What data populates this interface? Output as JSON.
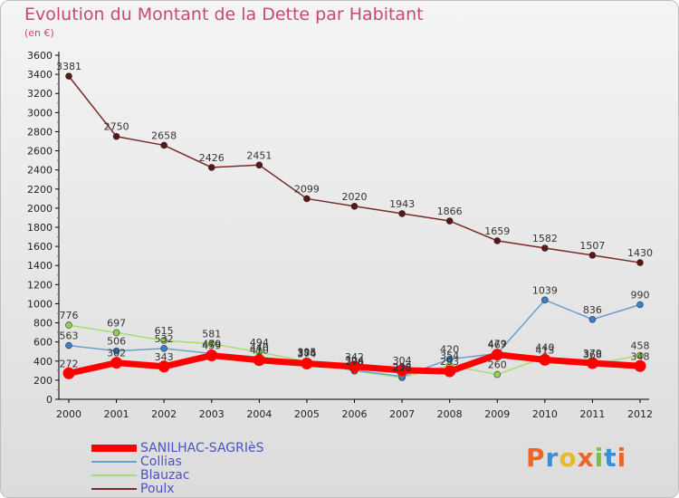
{
  "header": {
    "title": "Evolution du Montant de la Dette par Habitant",
    "unit": "(en €)"
  },
  "logo": {
    "text": "Proxiti",
    "colors": [
      "#e8682a",
      "#3a8fd0",
      "#e8b92a",
      "#e8682a",
      "#7ac142",
      "#3a8fd0",
      "#e8682a"
    ]
  },
  "chart_data": {
    "type": "line",
    "title": "Evolution du Montant de la Dette par Habitant",
    "ylabel": "(en €)",
    "x": [
      "2000",
      "2001",
      "2002",
      "2003",
      "2004",
      "2005",
      "2006",
      "2007",
      "2008",
      "2009",
      "2010",
      "2011",
      "2012"
    ],
    "ylim": [
      0,
      3600
    ],
    "yticks": [
      0,
      200,
      400,
      600,
      800,
      1000,
      1200,
      1400,
      1600,
      1800,
      2000,
      2200,
      2400,
      2600,
      2800,
      3000,
      3200,
      3400,
      3600
    ],
    "grid": false,
    "legend_position": "bottom-left",
    "series": [
      {
        "name": "SANILHAC-SAGRIèS",
        "color": "#ff0000",
        "values": [
          272,
          382,
          343,
          459,
          410,
          374,
          342,
          304,
          293,
          467,
          413,
          379,
          348
        ]
      },
      {
        "name": "Collias",
        "color": "#6a9fd0",
        "values": [
          563,
          506,
          532,
          479,
          440,
          386,
          304,
          238,
          420,
          479,
          1039,
          836,
          990
        ]
      },
      {
        "name": "Blauzac",
        "color": "#a8dc70",
        "values": [
          776,
          697,
          615,
          581,
          494,
          395,
          296,
          228,
          354,
          260,
          440,
          366,
          458
        ]
      },
      {
        "name": "Poulx",
        "color": "#7a2a2a",
        "values": [
          3381,
          2750,
          2658,
          2426,
          2451,
          2099,
          2020,
          1943,
          1866,
          1659,
          1582,
          1507,
          1430
        ]
      }
    ]
  }
}
